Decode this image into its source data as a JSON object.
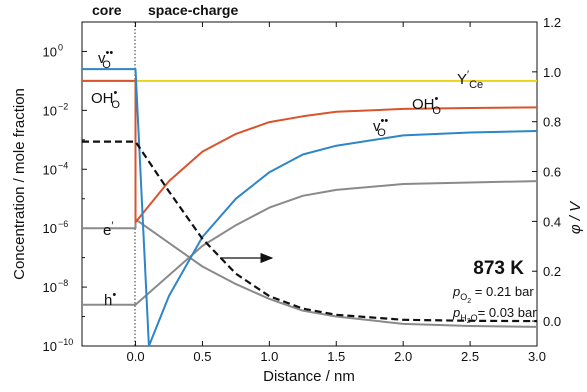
{
  "chart_data": {
    "type": "line",
    "regions": {
      "core": "core",
      "space_charge": "space-charge"
    },
    "xlabel": "Distance / nm",
    "ylabel": "Concentration / mole fraction",
    "ylabel_right": "φ / V",
    "xlim": [
      -0.4,
      3.0
    ],
    "ylim_log": [
      -10,
      1
    ],
    "ylim_right": [
      -0.1,
      1.2
    ],
    "x_ticks": [
      "0.0",
      "0.5",
      "1.0",
      "1.5",
      "2.0",
      "2.5",
      "3.0"
    ],
    "x_tick_values": [
      0,
      0.5,
      1.0,
      1.5,
      2.0,
      2.5,
      3.0
    ],
    "y_ticks": [
      "10",
      "10",
      "10",
      "10",
      "10",
      "10"
    ],
    "y_tick_exponents": [
      "0",
      "−2",
      "−4",
      "−6",
      "−8",
      "−10"
    ],
    "y_tick_values": [
      0,
      -2,
      -4,
      -6,
      -8,
      -10
    ],
    "y_right_ticks": [
      "0.0",
      "0.2",
      "0.4",
      "0.6",
      "0.8",
      "1.0",
      "1.2"
    ],
    "y_right_tick_values": [
      0,
      0.2,
      0.4,
      0.6,
      0.8,
      1.0,
      1.2
    ],
    "series": [
      {
        "name": "Y′Ce",
        "color": "#e8d21a",
        "x": [
          -0.4,
          3.0
        ],
        "log10_y": [
          -1.0,
          -1.0
        ]
      },
      {
        "name": "OH•O",
        "color": "#d9532b",
        "core_log10_y": -1.0,
        "x": [
          0.0,
          0.25,
          0.5,
          0.75,
          1.0,
          1.25,
          1.5,
          2.0,
          2.5,
          3.0
        ],
        "log10_y": [
          -5.8,
          -4.4,
          -3.4,
          -2.8,
          -2.4,
          -2.2,
          -2.05,
          -1.95,
          -1.92,
          -1.9
        ]
      },
      {
        "name": "v••O",
        "color": "#2d86c7",
        "core_log10_y": -0.6,
        "x": [
          0.1,
          0.25,
          0.5,
          0.75,
          1.0,
          1.25,
          1.5,
          2.0,
          2.5,
          3.0
        ],
        "log10_y": [
          -10.0,
          -8.3,
          -6.3,
          -5.0,
          -4.1,
          -3.5,
          -3.2,
          -2.85,
          -2.75,
          -2.7
        ]
      },
      {
        "name": "e′",
        "color": "#8a8a8a",
        "core_log10_y": -6.0,
        "x": [
          0.0,
          0.25,
          0.5,
          0.75,
          1.0,
          1.25,
          1.5,
          2.0,
          2.5,
          3.0
        ],
        "log10_y": [
          -5.7,
          -6.5,
          -7.3,
          -7.9,
          -8.4,
          -8.8,
          -9.0,
          -9.25,
          -9.32,
          -9.35
        ]
      },
      {
        "name": "h•",
        "color": "#8a8a8a",
        "core_log10_y": -8.6,
        "x": [
          0.0,
          0.25,
          0.5,
          0.75,
          1.0,
          1.25,
          1.5,
          2.0,
          2.5,
          3.0
        ],
        "log10_y": [
          -8.6,
          -7.6,
          -6.6,
          -5.9,
          -5.3,
          -4.9,
          -4.7,
          -4.5,
          -4.45,
          -4.4
        ]
      },
      {
        "name": "φ",
        "axis": "right",
        "style": "dashed",
        "color": "#111111",
        "core_y": 0.72,
        "x": [
          0.0,
          0.25,
          0.5,
          0.75,
          1.0,
          1.25,
          1.5,
          2.0,
          2.5,
          3.0
        ],
        "y": [
          0.72,
          0.52,
          0.33,
          0.19,
          0.1,
          0.05,
          0.025,
          0.005,
          0.001,
          0.0
        ]
      }
    ],
    "series_labels": {
      "y_ce_base": "Y",
      "y_ce_prime": "′",
      "y_ce_sub": "Ce",
      "oh_left_base": "OH",
      "oh_left_sup": "•",
      "oh_left_sub": "O",
      "oh_right_base": "OH",
      "oh_right_sup": "•",
      "oh_right_sub": "O",
      "vo_left_base": "v",
      "vo_left_sup": "••",
      "vo_left_sub": "O",
      "vo_right_base": "v",
      "vo_right_sup": "••",
      "vo_right_sub": "O",
      "e_base": "e",
      "e_sup": "′",
      "h_base": "h",
      "h_sup": "•"
    },
    "annotations": {
      "temperature": "873 K",
      "po2_p": "p",
      "po2_sub": "O",
      "po2_subsub": "2",
      "po2_value": " = 0.21 bar",
      "ph2o_p": "p",
      "ph2o_sub": "H",
      "ph2o_subsub": "2",
      "ph2o_subtail": "O",
      "ph2o_value": "= 0.03 bar"
    }
  }
}
